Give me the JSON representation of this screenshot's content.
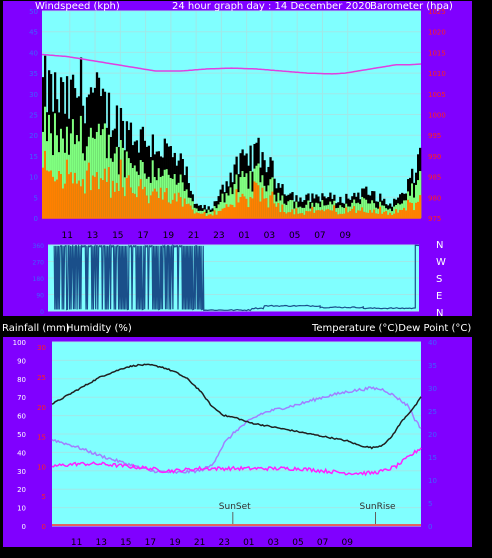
{
  "header": {
    "left_label": "Windspeed (kph)",
    "center_label": "24 hour graph day : 14 December 2020",
    "right_label": "Barometer (hpa)"
  },
  "bottom_header": {
    "rain_label": "Rainfall (mm)",
    "humidity_label": "Humidity (%)",
    "temp_label": "Temperature (°C)Dew Point (°C)"
  },
  "colors": {
    "frame": "#8000ff",
    "plot_bg": "#80ffff",
    "grid": "#a0e8e8",
    "axis_text": "#4060ff",
    "red_text": "#ff2020",
    "gust": "#000000",
    "avg_wind": "#80ff80",
    "low_wind": "#ff8000",
    "barometer": "#e040e0",
    "direction": "#1a4f8a",
    "temperature": "#202020",
    "dew_point": "#ff20ff",
    "humidity": "#a080ff",
    "rain": "#ff3030",
    "header_text": "#ffffff"
  },
  "time_ticks": [
    "11",
    "13",
    "15",
    "17",
    "19",
    "21",
    "23",
    "01",
    "03",
    "05",
    "07",
    "09"
  ],
  "direction_letters": [
    "N",
    "W",
    "S",
    "E",
    "N"
  ],
  "annotations": {
    "sunset": "SunSet",
    "sunrise": "SunRise"
  },
  "chart_data": [
    {
      "type": "line",
      "name": "wind_barometer",
      "x_hours_start": "09:00",
      "x": [
        "11",
        "13",
        "15",
        "17",
        "19",
        "21",
        "23",
        "01",
        "03",
        "05",
        "07",
        "09"
      ],
      "left_axis": {
        "ticks": [
          0,
          5,
          10,
          15,
          20,
          25,
          30,
          35,
          40,
          45,
          50
        ],
        "ylim": [
          0,
          50
        ]
      },
      "right_axis": {
        "ticks": [
          975,
          980,
          985,
          990,
          995,
          1000,
          1005,
          1010,
          1015,
          1020,
          1025
        ],
        "ylim": [
          975,
          1025
        ]
      },
      "barometer_points": [
        [
          0,
          1014.5
        ],
        [
          2,
          1014
        ],
        [
          4,
          1013
        ],
        [
          6,
          1012
        ],
        [
          8,
          1011
        ],
        [
          9,
          1010.5
        ],
        [
          11,
          1010.5
        ],
        [
          13,
          1011
        ],
        [
          15,
          1011.2
        ],
        [
          17,
          1011
        ],
        [
          19,
          1010.5
        ],
        [
          21,
          1010
        ],
        [
          23,
          1009.8
        ],
        [
          24,
          1010
        ],
        [
          25,
          1010.5
        ],
        [
          27,
          1011.5
        ],
        [
          28,
          1012
        ],
        [
          29,
          1012
        ],
        [
          30,
          1012.2
        ]
      ],
      "gust_profile": [
        [
          0,
          30
        ],
        [
          1,
          28
        ],
        [
          2,
          26
        ],
        [
          3,
          30
        ],
        [
          4,
          28
        ],
        [
          5,
          25
        ],
        [
          6,
          22
        ],
        [
          7,
          20
        ],
        [
          8,
          18
        ],
        [
          9,
          17
        ],
        [
          10,
          15
        ],
        [
          11,
          12
        ],
        [
          11.7,
          8
        ],
        [
          12,
          3
        ],
        [
          13.5,
          2
        ],
        [
          14,
          6
        ],
        [
          15,
          10
        ],
        [
          16,
          13
        ],
        [
          17,
          15
        ],
        [
          17.8,
          13
        ],
        [
          18.5,
          9
        ],
        [
          19.5,
          6
        ],
        [
          20.5,
          4
        ],
        [
          21.5,
          5
        ],
        [
          22.5,
          5
        ],
        [
          23.5,
          4
        ],
        [
          24.5,
          5
        ],
        [
          25.5,
          6
        ],
        [
          26.5,
          5
        ],
        [
          27.5,
          3
        ],
        [
          28.5,
          5
        ],
        [
          29.5,
          10
        ],
        [
          30,
          16
        ]
      ]
    },
    {
      "type": "line",
      "name": "wind_direction",
      "ticks": [
        0,
        90,
        180,
        270,
        360
      ],
      "ylim": [
        0,
        360
      ],
      "steady_segments": [
        [
          12.6,
          16.5,
          5
        ],
        [
          16.5,
          17.5,
          15
        ],
        [
          17.5,
          22.0,
          28
        ],
        [
          22.0,
          22.8,
          20
        ],
        [
          22.8,
          25.5,
          20
        ],
        [
          25.5,
          29.7,
          15
        ],
        [
          29.7,
          30,
          360
        ]
      ]
    },
    {
      "type": "line",
      "name": "temperature_humidity",
      "left_axis": {
        "ticks": [
          0,
          10,
          20,
          30,
          40,
          50,
          60,
          70,
          80,
          90,
          100
        ],
        "ylim": [
          0,
          100
        ]
      },
      "rain_ticks": [
        0,
        5,
        10,
        15,
        20,
        25,
        30
      ],
      "right_axis": {
        "ticks": [
          0,
          5,
          10,
          15,
          20,
          25,
          30,
          35,
          40
        ],
        "ylim": [
          0,
          40
        ]
      },
      "temperature": [
        [
          0,
          26.5
        ],
        [
          1,
          28
        ],
        [
          2,
          29.5
        ],
        [
          3,
          31
        ],
        [
          4,
          32.5
        ],
        [
          5,
          33.5
        ],
        [
          6,
          34.5
        ],
        [
          7,
          35
        ],
        [
          8,
          35
        ],
        [
          9,
          34.5
        ],
        [
          10,
          33.5
        ],
        [
          11,
          32
        ],
        [
          12,
          29.5
        ],
        [
          13,
          26
        ],
        [
          14,
          24
        ],
        [
          15,
          23.5
        ],
        [
          16,
          22.5
        ],
        [
          17,
          22
        ],
        [
          18,
          21.5
        ],
        [
          19,
          21
        ],
        [
          20,
          20.5
        ],
        [
          21,
          20
        ],
        [
          22,
          19.5
        ],
        [
          23,
          19
        ],
        [
          24,
          18.5
        ],
        [
          25,
          17.5
        ],
        [
          26,
          17
        ],
        [
          26.8,
          17.5
        ],
        [
          27.5,
          19
        ],
        [
          28.5,
          23
        ],
        [
          29.5,
          26
        ],
        [
          30,
          28
        ]
      ],
      "dew_point": [
        [
          0,
          13
        ],
        [
          2,
          13.5
        ],
        [
          4,
          13.5
        ],
        [
          6,
          13
        ],
        [
          8,
          12.5
        ],
        [
          9,
          12
        ],
        [
          10,
          12
        ],
        [
          12,
          12.5
        ],
        [
          14,
          12.5
        ],
        [
          16,
          12.5
        ],
        [
          18,
          12.5
        ],
        [
          20,
          12.5
        ],
        [
          22,
          12
        ],
        [
          24,
          11.5
        ],
        [
          26,
          11.5
        ],
        [
          27,
          12
        ],
        [
          28,
          13
        ],
        [
          29,
          15
        ],
        [
          30,
          17
        ]
      ],
      "humidity": [
        [
          0,
          47
        ],
        [
          2,
          43
        ],
        [
          4,
          38
        ],
        [
          6,
          34
        ],
        [
          8,
          30
        ],
        [
          10,
          29
        ],
        [
          12,
          30
        ],
        [
          13,
          33
        ],
        [
          14,
          45
        ],
        [
          15,
          52
        ],
        [
          16,
          57
        ],
        [
          17,
          61
        ],
        [
          18,
          63
        ],
        [
          20,
          66
        ],
        [
          22,
          70
        ],
        [
          24,
          73
        ],
        [
          26,
          75
        ],
        [
          27,
          74
        ],
        [
          28,
          70
        ],
        [
          29,
          65
        ],
        [
          29.5,
          58
        ],
        [
          30,
          53
        ]
      ],
      "rain": [
        [
          0,
          0
        ],
        [
          30,
          0
        ]
      ],
      "sunset_hour": 14.7,
      "sunrise_hour": 26.3
    }
  ]
}
